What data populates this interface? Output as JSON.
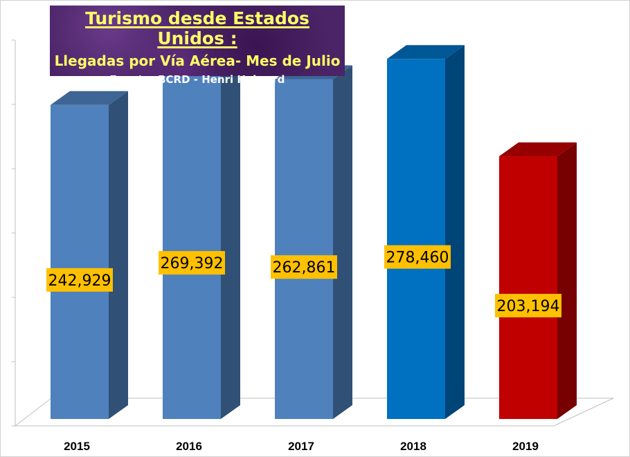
{
  "title": {
    "main": "Turismo desde Estados Unidos :",
    "subtitle": "Llegadas por Vía Aérea- Mes de Julio",
    "source": "Fuente: BCRD - Henri Hebrard"
  },
  "colors": {
    "bar_default": "#4f81bd",
    "bar_2018": "#0070c0",
    "bar_2019": "#c00000",
    "label_bg": "#ffc000"
  },
  "chart_data": {
    "type": "bar",
    "categories": [
      "2015",
      "2016",
      "2017",
      "2018",
      "2019"
    ],
    "values": [
      242929,
      269392,
      262861,
      278460,
      203194
    ],
    "labels": [
      "242,929",
      "269,392",
      "262,861",
      "278,460",
      "203,194"
    ],
    "bar_colors": [
      "#4f81bd",
      "#4f81bd",
      "#4f81bd",
      "#0070c0",
      "#c00000"
    ],
    "ylim": [
      0,
      300000
    ],
    "grid": false,
    "style": "3d-column"
  }
}
